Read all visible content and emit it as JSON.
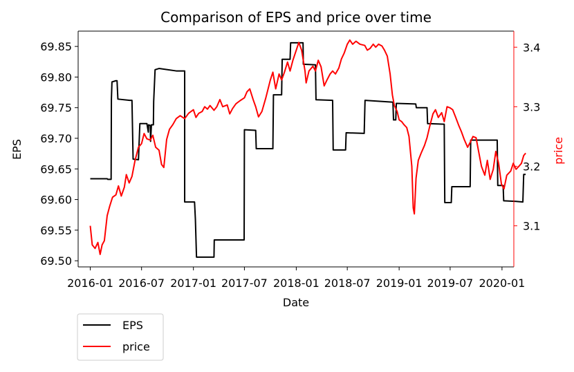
{
  "chart_data": {
    "type": "line",
    "title": "Comparison of EPS and price over time",
    "xlabel": "Date",
    "ylabel_left": "EPS",
    "ylabel_right": "price",
    "x_ticks": [
      "2016-01",
      "2016-07",
      "2017-01",
      "2017-07",
      "2018-01",
      "2018-07",
      "2019-01",
      "2019-07",
      "2020-01"
    ],
    "y_left_ticks": [
      "69.50",
      "69.55",
      "69.60",
      "69.65",
      "69.70",
      "69.75",
      "69.80",
      "69.85"
    ],
    "y_right_ticks": [
      "3.1",
      "3.2",
      "3.3",
      "3.4"
    ],
    "xlim": [
      "2015-11-19",
      "2020-02-12"
    ],
    "ylim_left": [
      69.49,
      69.875
    ],
    "ylim_right": [
      3.031,
      3.427
    ],
    "legend": {
      "placement": "below-left",
      "entries": [
        "EPS",
        "price"
      ]
    },
    "colors": {
      "EPS": "#000000",
      "price": "#ff0000",
      "right_axis": "#ff0000"
    },
    "grid": false,
    "series": [
      {
        "name": "EPS",
        "axis": "left",
        "color": "#000000",
        "points": [
          [
            "2016-01-01",
            69.634
          ],
          [
            "2016-03-01",
            69.634
          ],
          [
            "2016-03-03",
            69.633
          ],
          [
            "2016-03-15",
            69.633
          ],
          [
            "2016-03-16",
            69.764
          ],
          [
            "2016-03-18",
            69.792
          ],
          [
            "2016-04-01",
            69.794
          ],
          [
            "2016-04-05",
            69.794
          ],
          [
            "2016-04-08",
            69.764
          ],
          [
            "2016-05-20",
            69.762
          ],
          [
            "2016-05-28",
            69.762
          ],
          [
            "2016-06-01",
            69.666
          ],
          [
            "2016-06-20",
            69.665
          ],
          [
            "2016-06-25",
            69.724
          ],
          [
            "2016-07-20",
            69.724
          ],
          [
            "2016-07-25",
            69.71
          ],
          [
            "2016-07-26",
            69.722
          ],
          [
            "2016-08-01",
            69.721
          ],
          [
            "2016-08-02",
            69.695
          ],
          [
            "2016-08-05",
            69.722
          ],
          [
            "2016-08-12",
            69.722
          ],
          [
            "2016-08-13",
            69.76
          ],
          [
            "2016-08-18",
            69.812
          ],
          [
            "2016-09-01",
            69.814
          ],
          [
            "2016-10-01",
            69.812
          ],
          [
            "2016-11-01",
            69.81
          ],
          [
            "2016-12-01",
            69.81
          ],
          [
            "2016-12-01",
            69.596
          ],
          [
            "2017-01-01",
            69.596
          ],
          [
            "2017-01-05",
            69.596
          ],
          [
            "2017-01-08",
            69.568
          ],
          [
            "2017-01-12",
            69.506
          ],
          [
            "2017-03-15",
            69.506
          ],
          [
            "2017-03-16",
            69.534
          ],
          [
            "2017-06-30",
            69.534
          ],
          [
            "2017-07-01",
            69.714
          ],
          [
            "2017-08-10",
            69.713
          ],
          [
            "2017-08-12",
            69.683
          ],
          [
            "2017-10-10",
            69.683
          ],
          [
            "2017-10-12",
            69.771
          ],
          [
            "2017-11-10",
            69.771
          ],
          [
            "2017-11-12",
            69.829
          ],
          [
            "2017-12-10",
            69.829
          ],
          [
            "2017-12-12",
            69.856
          ],
          [
            "2018-01-25",
            69.856
          ],
          [
            "2018-01-26",
            69.821
          ],
          [
            "2018-03-10",
            69.82
          ],
          [
            "2018-03-12",
            69.763
          ],
          [
            "2018-05-10",
            69.762
          ],
          [
            "2018-05-12",
            69.681
          ],
          [
            "2018-06-25",
            69.681
          ],
          [
            "2018-06-27",
            69.709
          ],
          [
            "2018-08-30",
            69.708
          ],
          [
            "2018-09-02",
            69.762
          ],
          [
            "2018-12-10",
            69.759
          ],
          [
            "2018-12-12",
            69.73
          ],
          [
            "2018-12-20",
            69.73
          ],
          [
            "2018-12-22",
            69.757
          ],
          [
            "2019-03-01",
            69.756
          ],
          [
            "2019-03-03",
            69.75
          ],
          [
            "2019-04-10",
            69.75
          ],
          [
            "2019-04-12",
            69.724
          ],
          [
            "2019-06-10",
            69.723
          ],
          [
            "2019-06-12",
            69.595
          ],
          [
            "2019-07-05",
            69.595
          ],
          [
            "2019-07-07",
            69.621
          ],
          [
            "2019-09-10",
            69.621
          ],
          [
            "2019-09-12",
            69.697
          ],
          [
            "2019-12-15",
            69.697
          ],
          [
            "2019-12-17",
            69.623
          ],
          [
            "2020-01-05",
            69.623
          ],
          [
            "2020-01-07",
            69.598
          ],
          [
            "2020-02-20",
            69.597
          ],
          [
            "2020-03-15",
            69.596
          ],
          [
            "2020-03-18",
            69.641
          ],
          [
            "2020-03-25",
            69.641
          ]
        ]
      },
      {
        "name": "price",
        "axis": "right",
        "color": "#ff0000",
        "points": [
          [
            "2016-01-01",
            3.1
          ],
          [
            "2016-01-08",
            3.068
          ],
          [
            "2016-01-18",
            3.062
          ],
          [
            "2016-01-28",
            3.072
          ],
          [
            "2016-02-05",
            3.052
          ],
          [
            "2016-02-12",
            3.068
          ],
          [
            "2016-02-20",
            3.075
          ],
          [
            "2016-03-01",
            3.117
          ],
          [
            "2016-03-10",
            3.133
          ],
          [
            "2016-03-20",
            3.148
          ],
          [
            "2016-04-01",
            3.152
          ],
          [
            "2016-04-10",
            3.167
          ],
          [
            "2016-04-20",
            3.15
          ],
          [
            "2016-05-01",
            3.165
          ],
          [
            "2016-05-08",
            3.186
          ],
          [
            "2016-05-18",
            3.172
          ],
          [
            "2016-05-28",
            3.183
          ],
          [
            "2016-06-08",
            3.21
          ],
          [
            "2016-06-20",
            3.232
          ],
          [
            "2016-07-01",
            3.238
          ],
          [
            "2016-07-10",
            3.255
          ],
          [
            "2016-07-20",
            3.246
          ],
          [
            "2016-08-01",
            3.244
          ],
          [
            "2016-08-10",
            3.252
          ],
          [
            "2016-08-20",
            3.232
          ],
          [
            "2016-09-01",
            3.227
          ],
          [
            "2016-09-10",
            3.203
          ],
          [
            "2016-09-18",
            3.198
          ],
          [
            "2016-09-28",
            3.245
          ],
          [
            "2016-10-08",
            3.262
          ],
          [
            "2016-10-20",
            3.27
          ],
          [
            "2016-11-01",
            3.28
          ],
          [
            "2016-11-15",
            3.285
          ],
          [
            "2016-12-01",
            3.28
          ],
          [
            "2016-12-15",
            3.289
          ],
          [
            "2017-01-01",
            3.295
          ],
          [
            "2017-01-10",
            3.282
          ],
          [
            "2017-01-20",
            3.289
          ],
          [
            "2017-02-01",
            3.292
          ],
          [
            "2017-02-10",
            3.3
          ],
          [
            "2017-02-20",
            3.296
          ],
          [
            "2017-03-01",
            3.302
          ],
          [
            "2017-03-15",
            3.294
          ],
          [
            "2017-03-25",
            3.3
          ],
          [
            "2017-04-05",
            3.312
          ],
          [
            "2017-04-15",
            3.3
          ],
          [
            "2017-05-01",
            3.303
          ],
          [
            "2017-05-10",
            3.288
          ],
          [
            "2017-05-20",
            3.297
          ],
          [
            "2017-06-01",
            3.305
          ],
          [
            "2017-06-15",
            3.31
          ],
          [
            "2017-07-01",
            3.315
          ],
          [
            "2017-07-10",
            3.325
          ],
          [
            "2017-07-20",
            3.33
          ],
          [
            "2017-08-01",
            3.312
          ],
          [
            "2017-08-10",
            3.3
          ],
          [
            "2017-08-20",
            3.283
          ],
          [
            "2017-09-01",
            3.292
          ],
          [
            "2017-09-15",
            3.315
          ],
          [
            "2017-10-01",
            3.345
          ],
          [
            "2017-10-10",
            3.358
          ],
          [
            "2017-10-20",
            3.33
          ],
          [
            "2017-11-01",
            3.355
          ],
          [
            "2017-11-10",
            3.345
          ],
          [
            "2017-11-20",
            3.358
          ],
          [
            "2017-12-01",
            3.375
          ],
          [
            "2017-12-10",
            3.36
          ],
          [
            "2017-12-20",
            3.378
          ],
          [
            "2018-01-01",
            3.395
          ],
          [
            "2018-01-10",
            3.408
          ],
          [
            "2018-01-20",
            3.395
          ],
          [
            "2018-02-01",
            3.36
          ],
          [
            "2018-02-05",
            3.34
          ],
          [
            "2018-02-15",
            3.36
          ],
          [
            "2018-03-01",
            3.368
          ],
          [
            "2018-03-10",
            3.36
          ],
          [
            "2018-03-20",
            3.378
          ],
          [
            "2018-03-30",
            3.367
          ],
          [
            "2018-04-10",
            3.335
          ],
          [
            "2018-04-20",
            3.345
          ],
          [
            "2018-05-01",
            3.355
          ],
          [
            "2018-05-10",
            3.36
          ],
          [
            "2018-05-20",
            3.355
          ],
          [
            "2018-06-01",
            3.365
          ],
          [
            "2018-06-10",
            3.38
          ],
          [
            "2018-06-20",
            3.39
          ],
          [
            "2018-07-01",
            3.405
          ],
          [
            "2018-07-10",
            3.412
          ],
          [
            "2018-07-20",
            3.405
          ],
          [
            "2018-08-01",
            3.41
          ],
          [
            "2018-08-15",
            3.405
          ],
          [
            "2018-09-01",
            3.403
          ],
          [
            "2018-09-10",
            3.395
          ],
          [
            "2018-09-20",
            3.398
          ],
          [
            "2018-10-01",
            3.405
          ],
          [
            "2018-10-10",
            3.4
          ],
          [
            "2018-10-20",
            3.405
          ],
          [
            "2018-11-01",
            3.402
          ],
          [
            "2018-11-10",
            3.395
          ],
          [
            "2018-11-20",
            3.385
          ],
          [
            "2018-11-30",
            3.355
          ],
          [
            "2018-12-08",
            3.32
          ],
          [
            "2018-12-15",
            3.302
          ],
          [
            "2018-12-25",
            3.292
          ],
          [
            "2019-01-01",
            3.278
          ],
          [
            "2019-01-10",
            3.275
          ],
          [
            "2019-01-18",
            3.27
          ],
          [
            "2019-01-28",
            3.265
          ],
          [
            "2019-02-05",
            3.25
          ],
          [
            "2019-02-15",
            3.2
          ],
          [
            "2019-02-20",
            3.13
          ],
          [
            "2019-02-24",
            3.12
          ],
          [
            "2019-03-02",
            3.18
          ],
          [
            "2019-03-10",
            3.21
          ],
          [
            "2019-03-20",
            3.222
          ],
          [
            "2019-04-01",
            3.235
          ],
          [
            "2019-04-10",
            3.248
          ],
          [
            "2019-04-20",
            3.268
          ],
          [
            "2019-05-01",
            3.288
          ],
          [
            "2019-05-10",
            3.295
          ],
          [
            "2019-05-20",
            3.282
          ],
          [
            "2019-06-01",
            3.29
          ],
          [
            "2019-06-10",
            3.275
          ],
          [
            "2019-06-20",
            3.3
          ],
          [
            "2019-07-01",
            3.298
          ],
          [
            "2019-07-10",
            3.295
          ],
          [
            "2019-07-20",
            3.283
          ],
          [
            "2019-08-01",
            3.268
          ],
          [
            "2019-08-10",
            3.258
          ],
          [
            "2019-08-20",
            3.245
          ],
          [
            "2019-09-01",
            3.232
          ],
          [
            "2019-09-10",
            3.24
          ],
          [
            "2019-09-20",
            3.25
          ],
          [
            "2019-10-01",
            3.248
          ],
          [
            "2019-10-10",
            3.225
          ],
          [
            "2019-10-20",
            3.2
          ],
          [
            "2019-11-01",
            3.185
          ],
          [
            "2019-11-10",
            3.21
          ],
          [
            "2019-11-20",
            3.178
          ],
          [
            "2019-12-01",
            3.195
          ],
          [
            "2019-12-10",
            3.225
          ],
          [
            "2019-12-20",
            3.205
          ],
          [
            "2019-12-30",
            3.17
          ],
          [
            "2020-01-08",
            3.162
          ],
          [
            "2020-01-18",
            3.185
          ],
          [
            "2020-02-01",
            3.192
          ],
          [
            "2020-02-10",
            3.205
          ],
          [
            "2020-02-20",
            3.195
          ],
          [
            "2020-03-01",
            3.2
          ],
          [
            "2020-03-10",
            3.205
          ],
          [
            "2020-03-18",
            3.218
          ],
          [
            "2020-03-25",
            3.222
          ]
        ]
      }
    ]
  }
}
